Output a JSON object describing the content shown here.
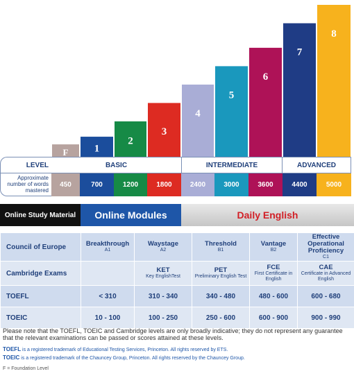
{
  "chart_data": {
    "type": "bar",
    "categories": [
      "F",
      "1",
      "2",
      "3",
      "4",
      "5",
      "6",
      "7",
      "8"
    ],
    "values": [
      450,
      700,
      1200,
      1800,
      2400,
      3000,
      3600,
      4400,
      5000
    ],
    "colors": [
      "#b7a39f",
      "#1b4d9c",
      "#168a46",
      "#dd2b22",
      "#a9add6",
      "#1a98bd",
      "#ae1257",
      "#1f3c85",
      "#f7b21d"
    ],
    "words_row_label": "Approximate number of words mastered",
    "level_row_label": "LEVEL",
    "levels": [
      {
        "name": "BASIC",
        "span": 4
      },
      {
        "name": "INTERMEDIATE",
        "span": 3
      },
      {
        "name": "ADVANCED",
        "span": 2
      }
    ]
  },
  "online": {
    "study_material": "Online Study Material",
    "modules": "Online Modules",
    "daily": "Daily English"
  },
  "table": {
    "coe_label": "Council of Europe",
    "coe": [
      {
        "name": "Breakthrough",
        "code": "A1"
      },
      {
        "name": "Waystage",
        "code": "A2"
      },
      {
        "name": "Threshold",
        "code": "B1"
      },
      {
        "name": "Vantage",
        "code": "B2"
      },
      {
        "name": "Effective Operational Proficiency",
        "code": "C1"
      }
    ],
    "cambridge_label": "Cambridge Exams",
    "cambridge": [
      {
        "name": "",
        "desc": ""
      },
      {
        "name": "KET",
        "desc": "Key EnglishTest"
      },
      {
        "name": "PET",
        "desc": "Preliminary English Test"
      },
      {
        "name": "FCE",
        "desc": "First Certificate in English"
      },
      {
        "name": "CAE",
        "desc": "Certificate in Advanced English"
      }
    ],
    "toefl_label": "TOEFL",
    "toefl": [
      "< 310",
      "310 - 340",
      "340 - 480",
      "480 - 600",
      "600 - 680"
    ],
    "toeic_label": "TOEIC",
    "toeic": [
      "10 - 100",
      "100 - 250",
      "250 - 600",
      "600 - 900",
      "900 - 990"
    ]
  },
  "notes": {
    "main": "Please note that the TOEFL, TOEIC and Cambridge levels are only broadly indicative; they do not represent any guarantee that the relevant examinations can be passed or scores attained at these levels.",
    "tm_toefl_name": "TOEFL",
    "tm_toefl": " is a registered trademark of Educational Testing Services, Princeton. All rights reserved by ETS.",
    "tm_toeic_name": "TOEIC",
    "tm_toeic": " is a registered trademark of the Chauncey Group, Princeton. All rights reserved by the Chauncey Group.",
    "foundation": "F = Foundation Level"
  }
}
